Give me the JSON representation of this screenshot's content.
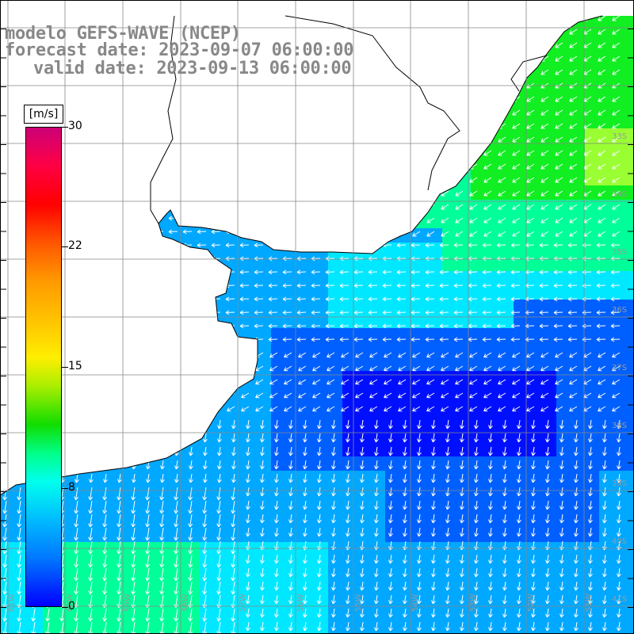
{
  "title": {
    "line1": "modelo GEFS-WAVE (NCEP)",
    "line2": "forecast date: 2023-09-07 06:00:00",
    "line3": "valid date: 2023-09-13 06:00:00"
  },
  "colorbar": {
    "unit": "[m/s]",
    "ticks": [
      {
        "label": "30",
        "value": 30
      },
      {
        "label": "22",
        "value": 22
      },
      {
        "label": "15",
        "value": 15
      },
      {
        "label": "8",
        "value": 8
      },
      {
        "label": "0",
        "value": 0
      }
    ],
    "range": [
      0,
      30
    ]
  },
  "map": {
    "lat_labels": [
      "33S",
      "34S",
      "35S",
      "36S",
      "37S",
      "38S",
      "39S",
      "40S",
      "41S"
    ],
    "lon_labels": [
      "61W",
      "60W",
      "59W",
      "58W",
      "57W",
      "56W",
      "55W",
      "54W",
      "53W",
      "52W",
      "51W"
    ],
    "ocean_colors": {
      "deep_blue": "#0010ff",
      "blue": "#0060ff",
      "light_blue": "#00a8ff",
      "cyan": "#00e8ff",
      "aqua_green": "#00ff99",
      "green": "#11ee22",
      "yellow_green": "#99ff33"
    },
    "land_color": "#ffffff",
    "grid_color": "#888888",
    "arrow_color": "#ffffff"
  }
}
